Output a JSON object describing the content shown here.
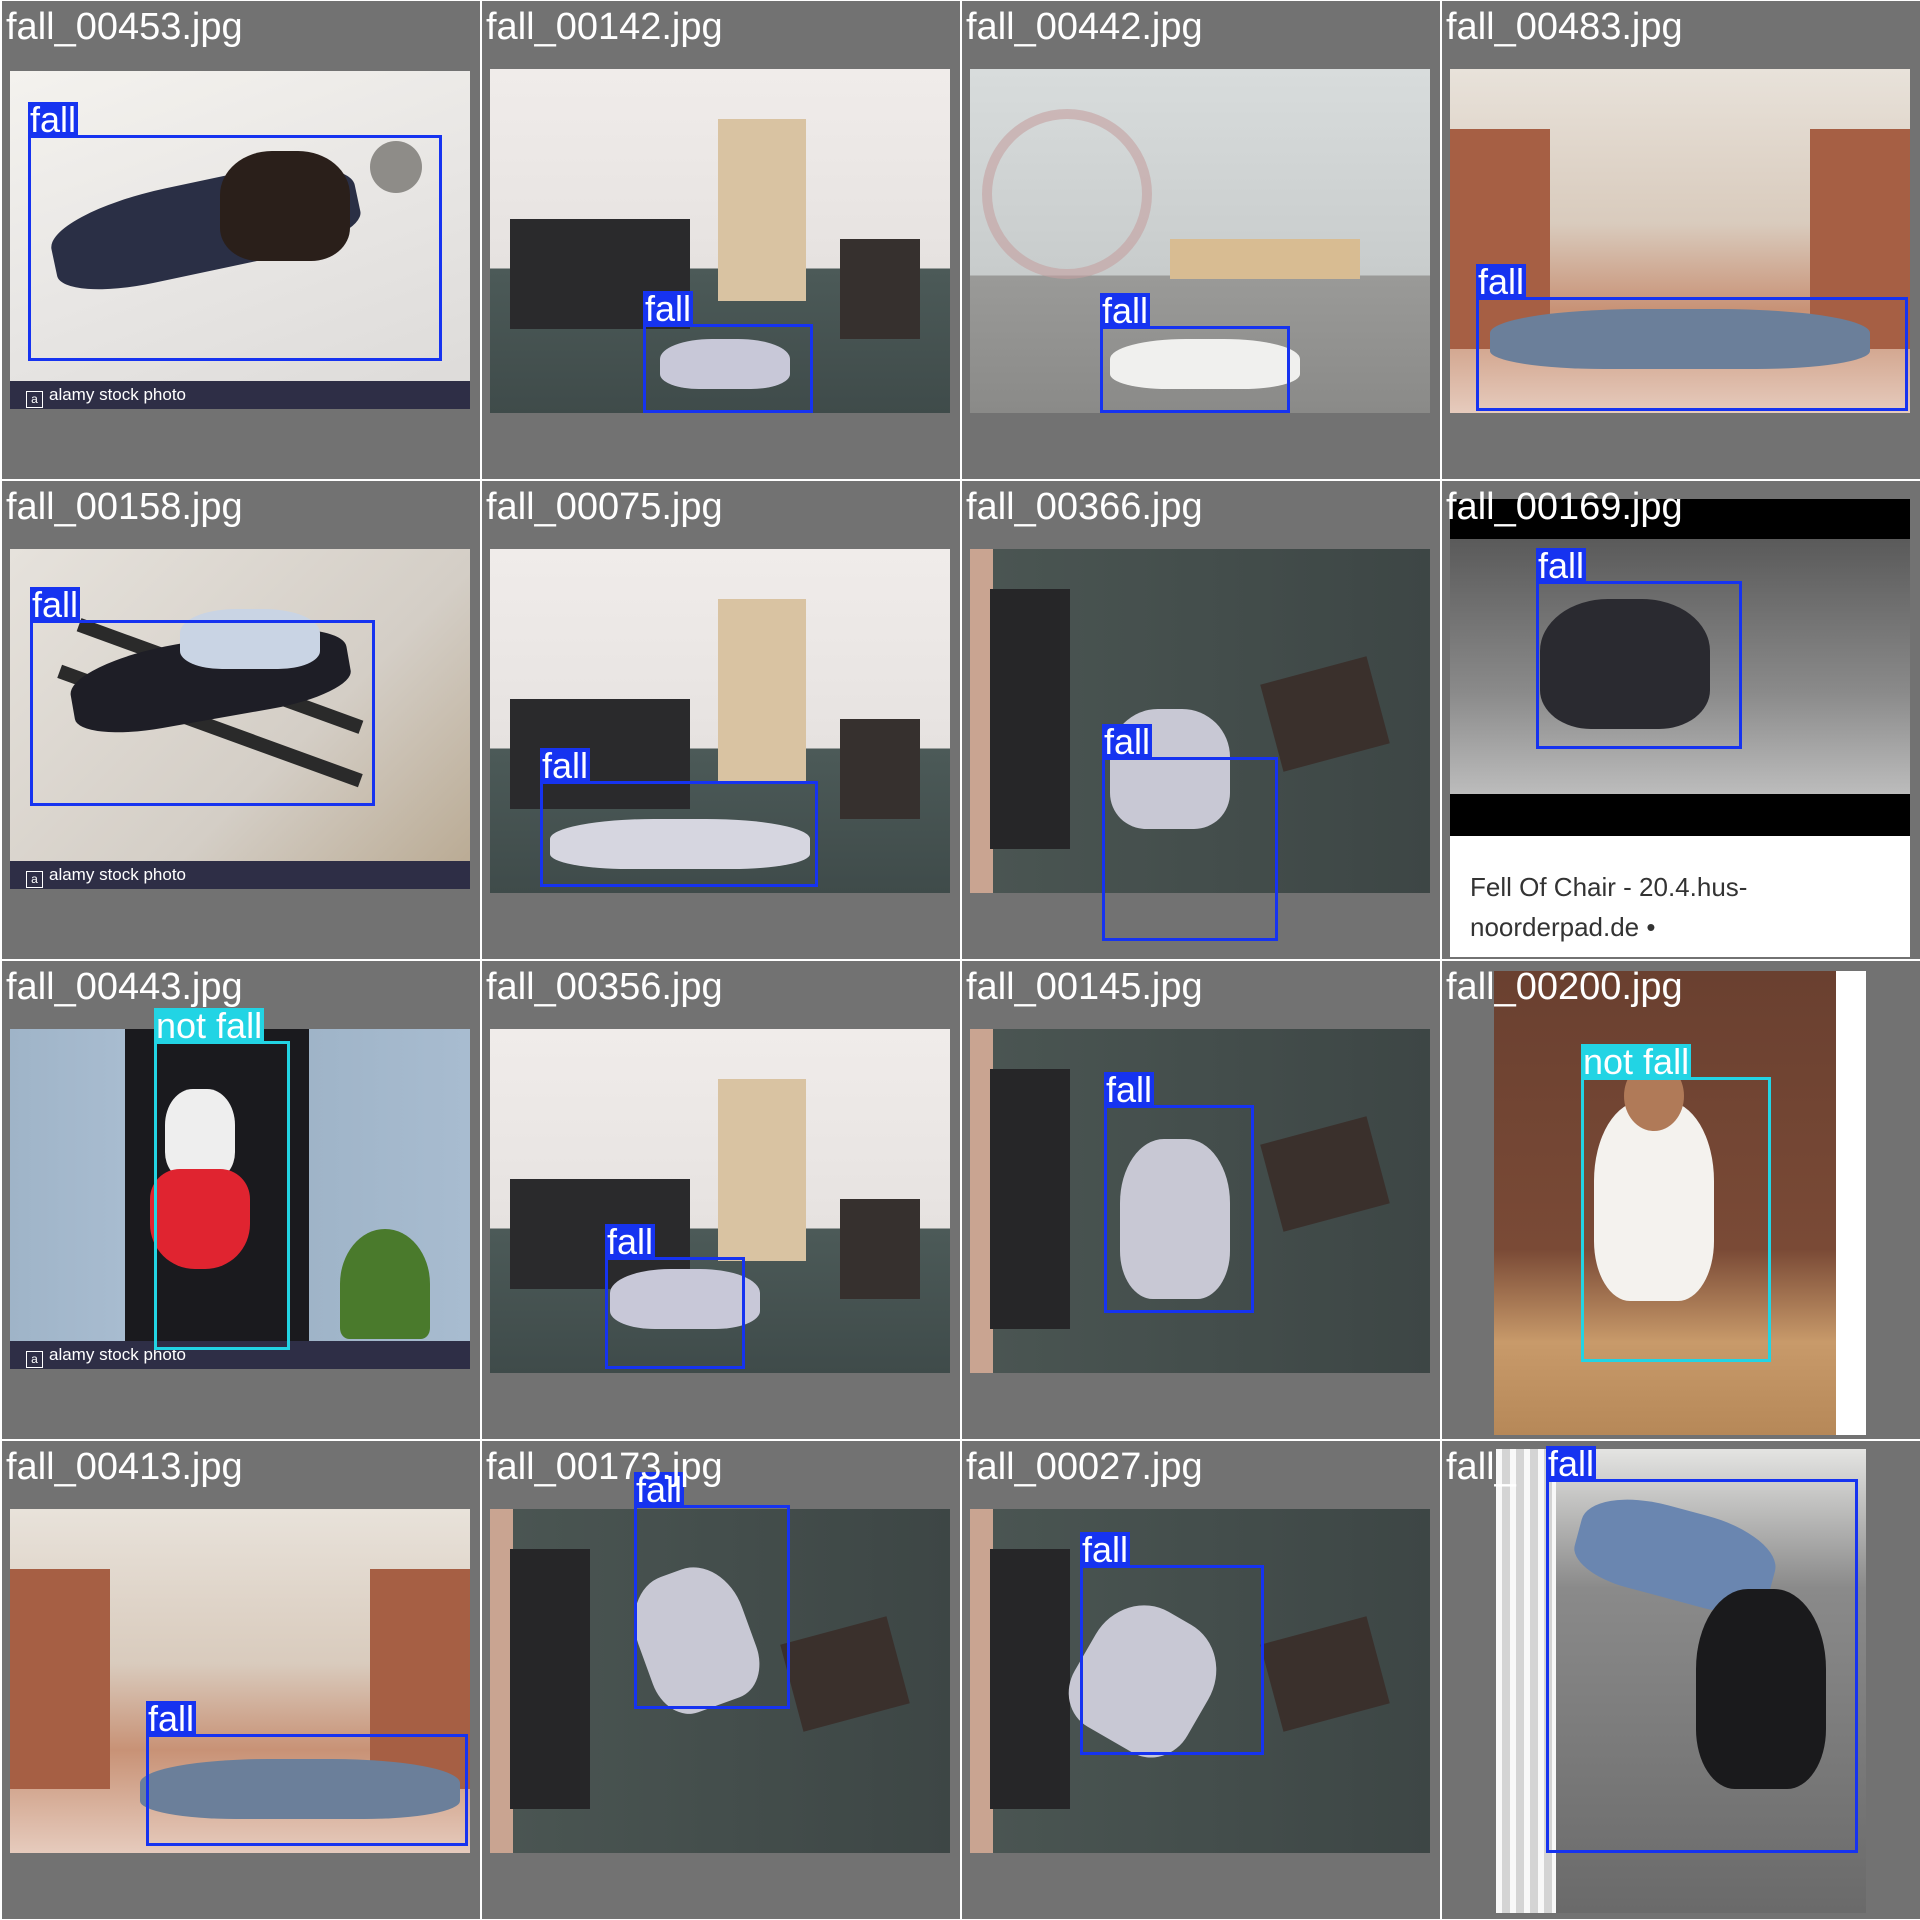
{
  "grid": {
    "tiles": [
      {
        "filename": "fall_00453.jpg",
        "label": "fall",
        "watermark": "alamy stock photo"
      },
      {
        "filename": "fall_00142.jpg",
        "label": "fall"
      },
      {
        "filename": "fall_00442.jpg",
        "label": "fall"
      },
      {
        "filename": "fall_00483.jpg",
        "label": "fall"
      },
      {
        "filename": "fall_00158.jpg",
        "label": "fall",
        "watermark": "alamy stock photo"
      },
      {
        "filename": "fall_00075.jpg",
        "label": "fall"
      },
      {
        "filename": "fall_00366.jpg",
        "label": "fall"
      },
      {
        "filename": "fall_00169.jpg",
        "label": "fall",
        "caption": "Fell Of Chair - 20.4.hus-noorderpad.de •"
      },
      {
        "filename": "fall_00443.jpg",
        "label": "not fall",
        "watermark": "alamy stock photo"
      },
      {
        "filename": "fall_00356.jpg",
        "label": "fall"
      },
      {
        "filename": "fall_00145.jpg",
        "label": "fall"
      },
      {
        "filename": "fall_00200.jpg",
        "label": "not fall"
      },
      {
        "filename": "fall_00413.jpg",
        "label": "fall"
      },
      {
        "filename": "fall_00173.jpg",
        "label": "fall"
      },
      {
        "filename": "fall_00027.jpg",
        "label": "fall"
      },
      {
        "filename": "fall_",
        "label": "fall"
      }
    ]
  },
  "colors": {
    "tile_background": "#727272",
    "fall_box": "#1633f0",
    "not_fall_box": "#22d4e4"
  }
}
